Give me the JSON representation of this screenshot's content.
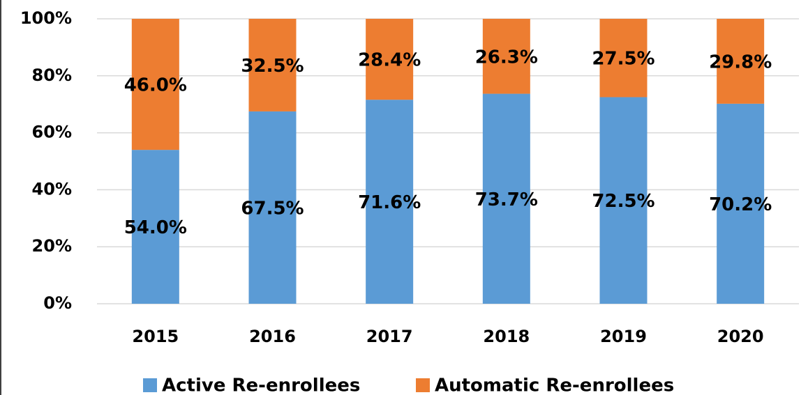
{
  "chart_data": {
    "type": "stacked_bar",
    "categories": [
      "2015",
      "2016",
      "2017",
      "2018",
      "2019",
      "2020"
    ],
    "series": [
      {
        "name": "Active Re-enrollees",
        "color": "#5b9bd5",
        "values": [
          54.0,
          67.5,
          71.6,
          73.7,
          72.5,
          70.2
        ],
        "value_labels": [
          "54.0%",
          "67.5%",
          "71.6%",
          "73.7%",
          "72.5%",
          "70.2%"
        ]
      },
      {
        "name": "Automatic Re-enrollees",
        "color": "#ed7d31",
        "values": [
          46.0,
          32.5,
          28.4,
          26.3,
          27.5,
          29.8
        ],
        "value_labels": [
          "46.0%",
          "32.5%",
          "28.4%",
          "26.3%",
          "27.5%",
          "29.8%"
        ]
      }
    ],
    "ylim": [
      0,
      100
    ],
    "yticks": [
      {
        "value": 0,
        "label": "0%"
      },
      {
        "value": 20,
        "label": "20%"
      },
      {
        "value": 40,
        "label": "40%"
      },
      {
        "value": 60,
        "label": "60%"
      },
      {
        "value": 80,
        "label": "80%"
      },
      {
        "value": 100,
        "label": "100%"
      }
    ],
    "grid": true,
    "legend": "bottom"
  }
}
